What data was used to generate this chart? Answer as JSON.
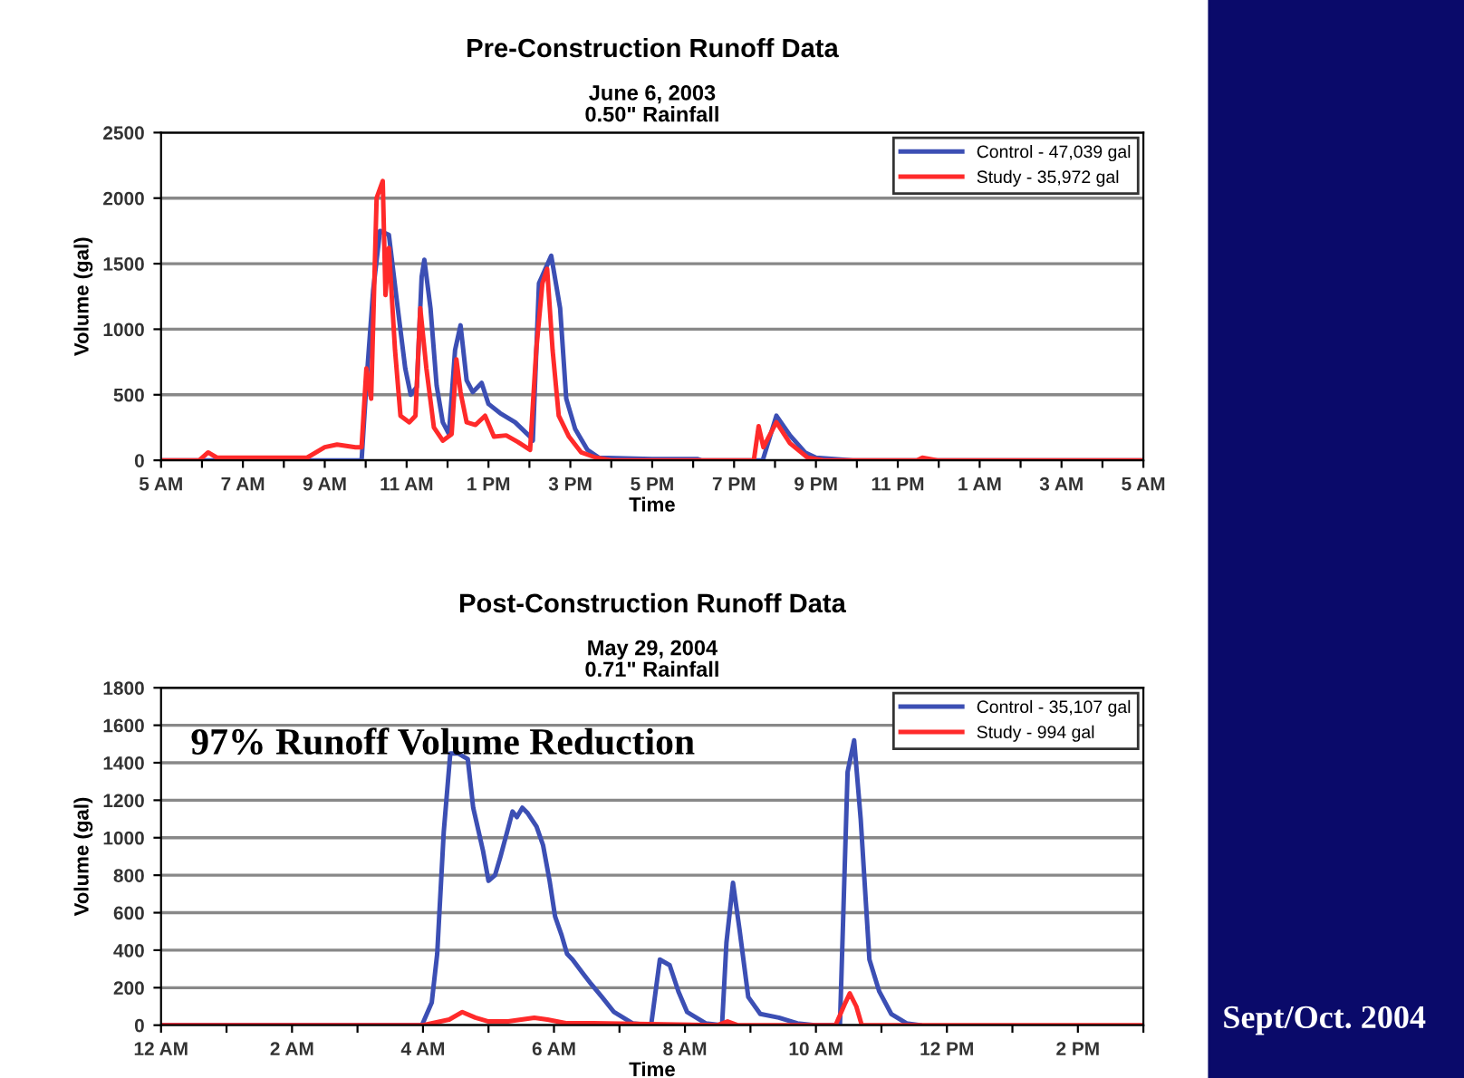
{
  "chart_data": [
    {
      "type": "line",
      "title": "Pre-Construction Runoff Data",
      "subtitle": "June 6, 2003\n0.50\" Rainfall",
      "xlabel": "Time",
      "ylabel": "Volume (gal)",
      "legend": "top right",
      "grid": "y",
      "marker": "none",
      "line_style": "solid",
      "xlim": [
        "2003-06-06T05:00",
        "2003-06-07T05:00"
      ],
      "xticks": [
        {
          "value": "2003-06-06T05:00",
          "label": "5 AM"
        },
        {
          "value": "2003-06-06T06:00",
          "label": null
        },
        {
          "value": "2003-06-06T07:00",
          "label": "7 AM"
        },
        {
          "value": "2003-06-06T08:00",
          "label": null
        },
        {
          "value": "2003-06-06T09:00",
          "label": "9 AM"
        },
        {
          "value": "2003-06-06T10:00",
          "label": null
        },
        {
          "value": "2003-06-06T11:00",
          "label": "11 AM"
        },
        {
          "value": "2003-06-06T12:00",
          "label": null
        },
        {
          "value": "2003-06-06T13:00",
          "label": "1 PM"
        },
        {
          "value": "2003-06-06T14:00",
          "label": null
        },
        {
          "value": "2003-06-06T15:00",
          "label": "3 PM"
        },
        {
          "value": "2003-06-06T16:00",
          "label": null
        },
        {
          "value": "2003-06-06T17:00",
          "label": "5 PM"
        },
        {
          "value": "2003-06-06T18:00",
          "label": null
        },
        {
          "value": "2003-06-06T19:00",
          "label": "7 PM"
        },
        {
          "value": "2003-06-06T20:00",
          "label": null
        },
        {
          "value": "2003-06-06T21:00",
          "label": "9 PM"
        },
        {
          "value": "2003-06-06T22:00",
          "label": null
        },
        {
          "value": "2003-06-06T23:00",
          "label": "11 PM"
        },
        {
          "value": "2003-06-07T00:00",
          "label": null
        },
        {
          "value": "2003-06-07T01:00",
          "label": "1 AM"
        },
        {
          "value": "2003-06-07T02:00",
          "label": null
        },
        {
          "value": "2003-06-07T03:00",
          "label": "3 AM"
        },
        {
          "value": "2003-06-07T04:00",
          "label": null
        },
        {
          "value": "2003-06-07T05:00",
          "label": "5 AM"
        }
      ],
      "ylim": [
        0,
        2500
      ],
      "yticks": [
        0,
        500,
        1000,
        1500,
        2000,
        2500
      ],
      "series": [
        {
          "name": "Control - 47,039 gal",
          "color": "#3c4fb4",
          "x": [
            "2003-06-06T05:00",
            "2003-06-06T09:54",
            "2003-06-06T10:02",
            "2003-06-06T10:11",
            "2003-06-06T10:21",
            "2003-06-06T10:34",
            "2003-06-06T10:47",
            "2003-06-06T10:58",
            "2003-06-06T11:06",
            "2003-06-06T11:15",
            "2003-06-06T11:22",
            "2003-06-06T11:26",
            "2003-06-06T11:35",
            "2003-06-06T11:44",
            "2003-06-06T11:53",
            "2003-06-06T12:02",
            "2003-06-06T12:11",
            "2003-06-06T12:19",
            "2003-06-06T12:28",
            "2003-06-06T12:37",
            "2003-06-06T12:50",
            "2003-06-06T13:00",
            "2003-06-06T13:17",
            "2003-06-06T13:39",
            "2003-06-06T14:01",
            "2003-06-06T14:05",
            "2003-06-06T14:14",
            "2003-06-06T14:32",
            "2003-06-06T14:45",
            "2003-06-06T14:54",
            "2003-06-06T15:07",
            "2003-06-06T15:25",
            "2003-06-06T15:42",
            "2003-06-06T17:00",
            "2003-06-06T18:06",
            "2003-06-06T18:12",
            "2003-06-06T19:42",
            "2003-06-06T20:02",
            "2003-06-06T20:22",
            "2003-06-06T20:44",
            "2003-06-06T21:00",
            "2003-06-06T21:54",
            "2003-06-07T05:00"
          ],
          "values": [
            0,
            0,
            660,
            1300,
            1750,
            1720,
            1160,
            700,
            500,
            560,
            1400,
            1530,
            1160,
            570,
            290,
            200,
            840,
            1030,
            610,
            520,
            590,
            430,
            360,
            290,
            180,
            150,
            1350,
            1560,
            1160,
            470,
            240,
            80,
            20,
            10,
            10,
            0,
            0,
            340,
            190,
            60,
            20,
            0,
            0
          ]
        },
        {
          "name": "Study - 35,972 gal",
          "color": "#ff2a2a",
          "x": [
            "2003-06-06T05:00",
            "2003-06-06T05:56",
            "2003-06-06T06:09",
            "2003-06-06T06:22",
            "2003-06-06T08:34",
            "2003-06-06T09:00",
            "2003-06-06T09:18",
            "2003-06-06T09:45",
            "2003-06-06T09:54",
            "2003-06-06T10:01",
            "2003-06-06T10:08",
            "2003-06-06T10:16",
            "2003-06-06T10:25",
            "2003-06-06T10:29",
            "2003-06-06T10:34",
            "2003-06-06T10:43",
            "2003-06-06T10:51",
            "2003-06-06T11:04",
            "2003-06-06T11:13",
            "2003-06-06T11:20",
            "2003-06-06T11:29",
            "2003-06-06T11:40",
            "2003-06-06T11:53",
            "2003-06-06T12:06",
            "2003-06-06T12:13",
            "2003-06-06T12:19",
            "2003-06-06T12:28",
            "2003-06-06T12:41",
            "2003-06-06T12:55",
            "2003-06-06T13:08",
            "2003-06-06T13:26",
            "2003-06-06T13:43",
            "2003-06-06T14:01",
            "2003-06-06T14:10",
            "2003-06-06T14:19",
            "2003-06-06T14:26",
            "2003-06-06T14:34",
            "2003-06-06T14:43",
            "2003-06-06T14:58",
            "2003-06-06T15:16",
            "2003-06-06T15:38",
            "2003-06-06T16:00",
            "2003-06-06T19:29",
            "2003-06-06T19:36",
            "2003-06-06T19:43",
            "2003-06-06T20:02",
            "2003-06-06T20:22",
            "2003-06-06T20:48",
            "2003-06-06T21:11",
            "2003-06-06T23:28",
            "2003-06-06T23:36",
            "2003-06-06T23:58",
            "2003-06-07T05:00"
          ],
          "values": [
            0,
            0,
            60,
            20,
            20,
            100,
            120,
            100,
            100,
            700,
            470,
            2000,
            2130,
            1260,
            1620,
            840,
            340,
            290,
            340,
            1160,
            700,
            250,
            150,
            200,
            770,
            520,
            290,
            270,
            340,
            180,
            190,
            140,
            80,
            840,
            1350,
            1460,
            840,
            340,
            180,
            60,
            20,
            0,
            0,
            260,
            100,
            290,
            130,
            20,
            0,
            0,
            20,
            0,
            0
          ]
        }
      ]
    },
    {
      "type": "line",
      "title": "Post-Construction Runoff Data",
      "subtitle": "May 29, 2004\n0.71\" Rainfall",
      "xlabel": "Time",
      "ylabel": "Volume (gal)",
      "legend": "top right",
      "grid": "y",
      "marker": "none",
      "line_style": "solid",
      "annotations": [
        "97% Runoff Volume Reduction",
        "Sept/Oct. 2004"
      ],
      "xlim": [
        "2004-05-29T00:00",
        "2004-05-29T15:00"
      ],
      "xticks": [
        {
          "value": "2004-05-29T00:00",
          "label": "12 AM"
        },
        {
          "value": "2004-05-29T01:00",
          "label": null
        },
        {
          "value": "2004-05-29T02:00",
          "label": "2 AM"
        },
        {
          "value": "2004-05-29T03:00",
          "label": null
        },
        {
          "value": "2004-05-29T04:00",
          "label": "4 AM"
        },
        {
          "value": "2004-05-29T05:00",
          "label": null
        },
        {
          "value": "2004-05-29T06:00",
          "label": "6 AM"
        },
        {
          "value": "2004-05-29T07:00",
          "label": null
        },
        {
          "value": "2004-05-29T08:00",
          "label": "8 AM"
        },
        {
          "value": "2004-05-29T09:00",
          "label": null
        },
        {
          "value": "2004-05-29T10:00",
          "label": "10 AM"
        },
        {
          "value": "2004-05-29T11:00",
          "label": null
        },
        {
          "value": "2004-05-29T12:00",
          "label": "12 PM"
        },
        {
          "value": "2004-05-29T13:00",
          "label": null
        },
        {
          "value": "2004-05-29T14:00",
          "label": "2 PM"
        },
        {
          "value": "2004-05-29T15:00",
          "label": null
        }
      ],
      "ylim": [
        0,
        1800
      ],
      "yticks": [
        0,
        200,
        400,
        600,
        800,
        1000,
        1200,
        1400,
        1600,
        1800
      ],
      "series": [
        {
          "name": "Control - 35,107 gal",
          "color": "#3c4fb4",
          "x": [
            "2004-05-29T00:00",
            "2004-05-29T03:59",
            "2004-05-29T04:08",
            "2004-05-29T04:13",
            "2004-05-29T04:19",
            "2004-05-29T04:25",
            "2004-05-29T04:32",
            "2004-05-29T04:41",
            "2004-05-29T04:46",
            "2004-05-29T04:55",
            "2004-05-29T05:00",
            "2004-05-29T05:06",
            "2004-05-29T05:11",
            "2004-05-29T05:17",
            "2004-05-29T05:22",
            "2004-05-29T05:26",
            "2004-05-29T05:31",
            "2004-05-29T05:36",
            "2004-05-29T05:44",
            "2004-05-29T05:50",
            "2004-05-29T05:56",
            "2004-05-29T06:01",
            "2004-05-29T06:07",
            "2004-05-29T06:12",
            "2004-05-29T06:17",
            "2004-05-29T06:26",
            "2004-05-29T06:34",
            "2004-05-29T06:44",
            "2004-05-29T06:55",
            "2004-05-29T07:12",
            "2004-05-29T07:29",
            "2004-05-29T07:37",
            "2004-05-29T07:46",
            "2004-05-29T07:54",
            "2004-05-29T08:02",
            "2004-05-29T08:19",
            "2004-05-29T08:34",
            "2004-05-29T08:38",
            "2004-05-29T08:44",
            "2004-05-29T08:50",
            "2004-05-29T08:58",
            "2004-05-29T09:09",
            "2004-05-29T09:26",
            "2004-05-29T09:43",
            "2004-05-29T09:59",
            "2004-05-29T10:22",
            "2004-05-29T10:29",
            "2004-05-29T10:35",
            "2004-05-29T10:41",
            "2004-05-29T10:49",
            "2004-05-29T10:58",
            "2004-05-29T11:09",
            "2004-05-29T11:23",
            "2004-05-29T11:35"
          ],
          "values": [
            0,
            0,
            120,
            380,
            1030,
            1450,
            1450,
            1420,
            1160,
            930,
            770,
            800,
            900,
            1030,
            1140,
            1110,
            1160,
            1130,
            1060,
            960,
            770,
            580,
            480,
            380,
            350,
            280,
            220,
            150,
            70,
            10,
            0,
            350,
            320,
            180,
            70,
            10,
            0,
            440,
            760,
            510,
            150,
            60,
            40,
            10,
            0,
            0,
            1350,
            1520,
            1100,
            350,
            180,
            60,
            10,
            0
          ]
        },
        {
          "name": "Study - 994 gal",
          "color": "#ff2a2a",
          "x": [
            "2004-05-29T00:00",
            "2004-05-29T04:00",
            "2004-05-29T04:24",
            "2004-05-29T04:36",
            "2004-05-29T04:48",
            "2004-05-29T05:00",
            "2004-05-29T05:18",
            "2004-05-29T05:30",
            "2004-05-29T05:42",
            "2004-05-29T05:54",
            "2004-05-29T06:12",
            "2004-05-29T06:36",
            "2004-05-29T08:30",
            "2004-05-29T08:39",
            "2004-05-29T08:48",
            "2004-05-29T10:18",
            "2004-05-29T10:27",
            "2004-05-29T10:31",
            "2004-05-29T10:37",
            "2004-05-29T10:42",
            "2004-05-29T15:00"
          ],
          "values": [
            0,
            0,
            30,
            70,
            40,
            20,
            20,
            30,
            40,
            30,
            10,
            10,
            0,
            20,
            0,
            0,
            120,
            170,
            100,
            0,
            0
          ]
        }
      ]
    }
  ]
}
